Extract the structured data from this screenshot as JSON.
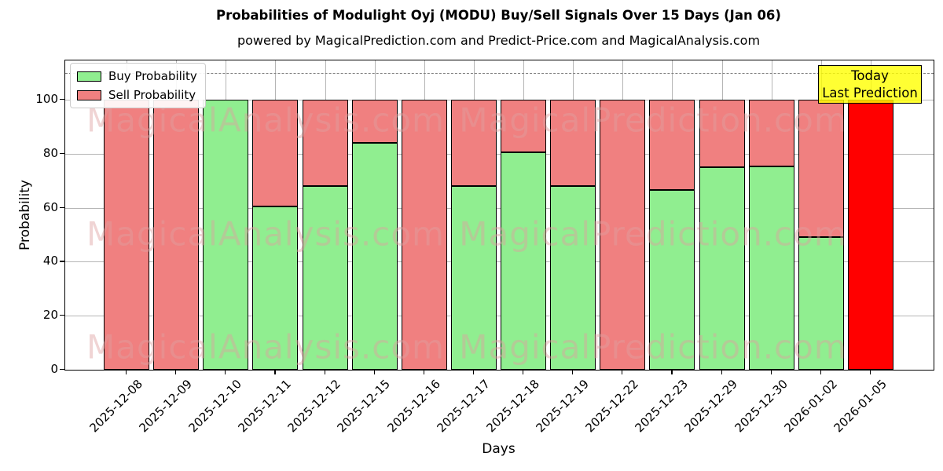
{
  "title": "Probabilities of Modulight Oyj (MODU) Buy/Sell Signals Over 15 Days (Jan 06)",
  "subtitle": "powered by MagicalPrediction.com and Predict-Price.com and MagicalAnalysis.com",
  "annotation": {
    "line1": "Today",
    "line2": "Last Prediction"
  },
  "watermarks": {
    "left": "MagicalAnalysis.com",
    "right": "MagicalPrediction.com"
  },
  "legend": {
    "items": [
      {
        "label": "Buy Probability",
        "color": "#90ee90"
      },
      {
        "label": "Sell Probability",
        "color": "#f08080"
      }
    ]
  },
  "colors": {
    "buy": "#90ee90",
    "sell": "#f08080",
    "today_sell": "#ff0000",
    "annotation_bg": "#ffff00",
    "grid": "#b5b5b5",
    "dashed_line": "#808080"
  },
  "chart_data": {
    "type": "bar",
    "stacked": true,
    "title": "Probabilities of Modulight Oyj (MODU) Buy/Sell Signals Over 15 Days (Jan 06)",
    "xlabel": "Days",
    "ylabel": "Probability",
    "categories": [
      "2025-12-08",
      "2025-12-09",
      "2025-12-10",
      "2025-12-11",
      "2025-12-12",
      "2025-12-15",
      "2025-12-16",
      "2025-12-17",
      "2025-12-18",
      "2025-12-19",
      "2025-12-22",
      "2025-12-23",
      "2025-12-29",
      "2025-12-30",
      "2026-01-02",
      "2026-01-05"
    ],
    "series": [
      {
        "name": "Buy Probability",
        "color": "#90ee90",
        "values": [
          0,
          0,
          100,
          60.5,
          68,
          84,
          0,
          68,
          80.5,
          68,
          0,
          66.5,
          75,
          75.3,
          49,
          0
        ]
      },
      {
        "name": "Sell Probability",
        "color": "#f08080",
        "values": [
          100,
          100,
          0,
          39.5,
          32,
          16,
          100,
          32,
          19.5,
          32,
          100,
          33.5,
          25,
          24.7,
          51,
          100
        ]
      }
    ],
    "today_bar_index": 15,
    "today_bar_sell_color": "#ff0000",
    "yticks": [
      0,
      20,
      40,
      60,
      80,
      100
    ],
    "ylim": [
      0,
      114.5
    ],
    "dashed_line_y": 110,
    "grid": true,
    "legend_position": "upper left"
  }
}
